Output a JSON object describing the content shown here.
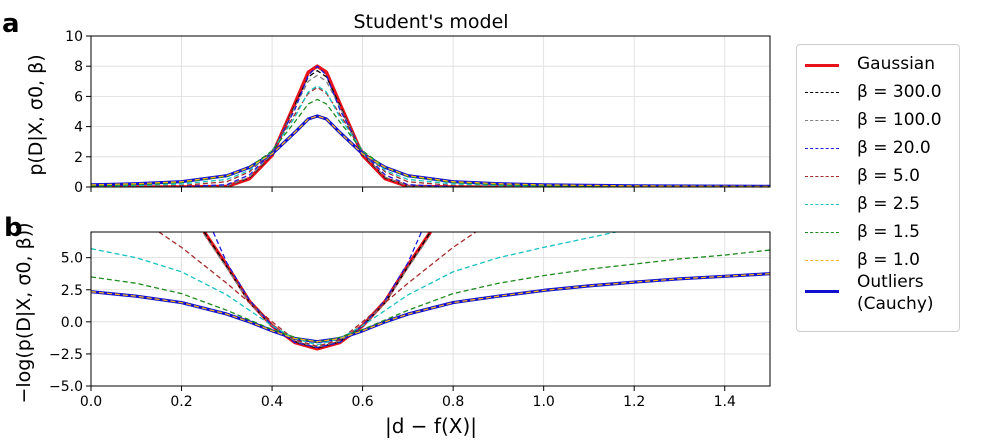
{
  "panel_labels": {
    "a": "a",
    "b": "b"
  },
  "xlabel": "|d − f(X)|",
  "chart_data": [
    {
      "type": "line",
      "title": "Student's model",
      "ylabel": "p(D|X, σ0, β)",
      "xlim": [
        0.0,
        1.5
      ],
      "ylim": [
        0,
        10
      ],
      "xticks": [
        0.0,
        0.2,
        0.4,
        0.6,
        0.8,
        1.0,
        1.2,
        1.4
      ],
      "yticks": [
        0,
        2,
        4,
        6,
        8,
        10
      ],
      "ytick_labels": [
        "0",
        "2",
        "4",
        "6",
        "8",
        "10"
      ],
      "grid": true,
      "x": [
        0.0,
        0.1,
        0.2,
        0.3,
        0.35,
        0.4,
        0.45,
        0.48,
        0.5,
        0.52,
        0.55,
        0.6,
        0.65,
        0.7,
        0.8,
        0.9,
        1.0,
        1.2,
        1.5
      ],
      "series": [
        {
          "name": "Gaussian",
          "values": [
            0.0,
            0.0,
            0.0,
            0.04,
            0.55,
            2.1,
            5.5,
            7.6,
            8.0,
            7.6,
            5.5,
            2.1,
            0.55,
            0.04,
            0.0,
            0.0,
            0.0,
            0.0,
            0.0
          ]
        },
        {
          "name": "β = 300.0",
          "values": [
            0.0,
            0.0,
            0.0,
            0.05,
            0.6,
            2.15,
            5.4,
            7.3,
            7.7,
            7.3,
            5.4,
            2.15,
            0.6,
            0.05,
            0.0,
            0.0,
            0.0,
            0.0,
            0.0
          ]
        },
        {
          "name": "β = 100.0",
          "values": [
            0.0,
            0.0,
            0.0,
            0.06,
            0.65,
            2.2,
            5.3,
            7.0,
            7.4,
            7.0,
            5.3,
            2.2,
            0.65,
            0.06,
            0.0,
            0.0,
            0.0,
            0.0,
            0.0
          ]
        },
        {
          "name": "β = 20.0",
          "values": [
            0.0,
            0.0,
            0.02,
            0.15,
            0.8,
            2.3,
            5.1,
            7.4,
            8.0,
            7.4,
            5.1,
            2.3,
            0.8,
            0.15,
            0.02,
            0.0,
            0.0,
            0.0,
            0.0
          ]
        },
        {
          "name": "β = 5.0",
          "values": [
            0.02,
            0.05,
            0.1,
            0.35,
            1.0,
            2.4,
            4.8,
            6.2,
            6.6,
            6.2,
            4.8,
            2.4,
            1.0,
            0.35,
            0.1,
            0.05,
            0.03,
            0.01,
            0.0
          ]
        },
        {
          "name": "β = 2.5",
          "values": [
            0.05,
            0.1,
            0.2,
            0.5,
            1.1,
            2.4,
            4.6,
            6.3,
            6.7,
            6.3,
            4.6,
            2.4,
            1.1,
            0.5,
            0.2,
            0.1,
            0.05,
            0.02,
            0.01
          ]
        },
        {
          "name": "β = 1.5",
          "values": [
            0.08,
            0.15,
            0.3,
            0.7,
            1.3,
            2.4,
            4.3,
            5.5,
            5.8,
            5.5,
            4.3,
            2.4,
            1.3,
            0.7,
            0.3,
            0.15,
            0.08,
            0.03,
            0.01
          ]
        },
        {
          "name": "β = 1.0",
          "values": [
            0.14,
            0.22,
            0.35,
            0.75,
            1.3,
            2.2,
            3.6,
            4.5,
            4.7,
            4.5,
            3.6,
            2.2,
            1.3,
            0.75,
            0.35,
            0.22,
            0.14,
            0.07,
            0.04
          ]
        },
        {
          "name": "Outliers (Cauchy)",
          "values": [
            0.14,
            0.22,
            0.35,
            0.75,
            1.3,
            2.2,
            3.6,
            4.5,
            4.7,
            4.5,
            3.6,
            2.2,
            1.3,
            0.75,
            0.35,
            0.22,
            0.14,
            0.07,
            0.04
          ]
        }
      ]
    },
    {
      "type": "line",
      "ylabel": "−log(p(D|X, σ0, β))",
      "xlim": [
        0.0,
        1.5
      ],
      "ylim": [
        -5.0,
        7.0
      ],
      "xticks": [
        0.0,
        0.2,
        0.4,
        0.6,
        0.8,
        1.0,
        1.2,
        1.4
      ],
      "xtick_labels": [
        "0.0",
        "0.2",
        "0.4",
        "0.6",
        "0.8",
        "1.0",
        "1.2",
        "1.4"
      ],
      "yticks": [
        -5.0,
        -2.5,
        0.0,
        2.5,
        5.0
      ],
      "ytick_labels": [
        "−5.0",
        "−2.5",
        "0.0",
        "2.5",
        "5.0"
      ],
      "grid": true,
      "series": [
        {
          "name": "Gaussian",
          "x": [
            0.25,
            0.3,
            0.35,
            0.4,
            0.45,
            0.5,
            0.55,
            0.6,
            0.65,
            0.7,
            0.75
          ],
          "values": [
            7.0,
            4.4,
            1.6,
            -0.3,
            -1.6,
            -2.1,
            -1.6,
            -0.3,
            1.6,
            4.4,
            7.0
          ]
        },
        {
          "name": "β = 300.0",
          "x": [
            0.25,
            0.3,
            0.35,
            0.4,
            0.45,
            0.5,
            0.55,
            0.6,
            0.65,
            0.7,
            0.75
          ],
          "values": [
            7.0,
            4.3,
            1.5,
            -0.3,
            -1.55,
            -2.05,
            -1.55,
            -0.3,
            1.5,
            4.3,
            7.0
          ]
        },
        {
          "name": "β = 100.0",
          "x": [
            0.25,
            0.3,
            0.35,
            0.4,
            0.45,
            0.5,
            0.55,
            0.6,
            0.65,
            0.7,
            0.75
          ],
          "values": [
            6.8,
            4.2,
            1.5,
            -0.3,
            -1.5,
            -2.0,
            -1.5,
            -0.3,
            1.5,
            4.2,
            6.8
          ]
        },
        {
          "name": "β = 20.0",
          "x": [
            0.27,
            0.3,
            0.35,
            0.4,
            0.45,
            0.5,
            0.55,
            0.6,
            0.65,
            0.7,
            0.73
          ],
          "values": [
            7.0,
            4.6,
            1.7,
            -0.3,
            -1.6,
            -2.0,
            -1.6,
            -0.3,
            1.7,
            4.6,
            7.0
          ]
        },
        {
          "name": "β = 5.0",
          "x": [
            0.15,
            0.2,
            0.3,
            0.35,
            0.4,
            0.45,
            0.5,
            0.55,
            0.6,
            0.65,
            0.7,
            0.8,
            0.85
          ],
          "values": [
            7.0,
            5.8,
            3.0,
            1.5,
            0.0,
            -1.4,
            -1.9,
            -1.4,
            0.0,
            1.5,
            3.0,
            5.8,
            7.0
          ]
        },
        {
          "name": "β = 2.5",
          "x": [
            0.0,
            0.1,
            0.2,
            0.3,
            0.4,
            0.45,
            0.5,
            0.55,
            0.6,
            0.7,
            0.8,
            0.9,
            1.0,
            1.16
          ],
          "values": [
            5.7,
            5.0,
            3.9,
            2.1,
            -0.3,
            -1.3,
            -1.8,
            -1.3,
            -0.3,
            2.1,
            3.9,
            5.0,
            5.8,
            7.0
          ]
        },
        {
          "name": "β = 1.5",
          "x": [
            0.0,
            0.1,
            0.2,
            0.3,
            0.4,
            0.45,
            0.5,
            0.55,
            0.6,
            0.7,
            0.8,
            0.9,
            1.0,
            1.1,
            1.2,
            1.3,
            1.4,
            1.5
          ],
          "values": [
            3.5,
            3.0,
            2.2,
            0.9,
            -0.6,
            -1.2,
            -1.6,
            -1.2,
            -0.6,
            0.9,
            2.2,
            3.0,
            3.6,
            4.1,
            4.5,
            4.9,
            5.2,
            5.6
          ]
        },
        {
          "name": "β = 1.0",
          "x": [
            0.0,
            0.1,
            0.2,
            0.3,
            0.35,
            0.4,
            0.45,
            0.5,
            0.55,
            0.6,
            0.65,
            0.7,
            0.8,
            0.9,
            1.0,
            1.1,
            1.2,
            1.3,
            1.4,
            1.5
          ],
          "values": [
            2.35,
            2.0,
            1.5,
            0.6,
            0.0,
            -0.7,
            -1.3,
            -1.55,
            -1.3,
            -0.7,
            0.0,
            0.6,
            1.5,
            2.0,
            2.45,
            2.8,
            3.1,
            3.35,
            3.55,
            3.75
          ]
        },
        {
          "name": "Outliers (Cauchy)",
          "x": [
            0.0,
            0.1,
            0.2,
            0.3,
            0.35,
            0.4,
            0.45,
            0.5,
            0.55,
            0.6,
            0.65,
            0.7,
            0.8,
            0.9,
            1.0,
            1.1,
            1.2,
            1.3,
            1.4,
            1.5
          ],
          "values": [
            2.35,
            2.0,
            1.5,
            0.6,
            0.0,
            -0.7,
            -1.3,
            -1.55,
            -1.3,
            -0.7,
            0.0,
            0.6,
            1.5,
            2.0,
            2.45,
            2.8,
            3.1,
            3.35,
            3.55,
            3.75
          ]
        }
      ]
    }
  ],
  "legend": {
    "placement": "right",
    "entries": [
      {
        "label": "Gaussian",
        "color": "#e8121a",
        "style": "solid"
      },
      {
        "label": "β = 300.0",
        "color": "#000000",
        "style": "dashed"
      },
      {
        "label": "β = 100.0",
        "color": "#808080",
        "style": "dashed"
      },
      {
        "label": "β = 20.0",
        "color": "#1a1adf",
        "style": "dashed"
      },
      {
        "label": "β = 5.0",
        "color": "#a52a2a",
        "style": "dashed"
      },
      {
        "label": "β = 2.5",
        "color": "#17c2c2",
        "style": "dashed"
      },
      {
        "label": "β = 1.5",
        "color": "#1e8c1e",
        "style": "dashed"
      },
      {
        "label": "β = 1.0",
        "color": "#f5b21b",
        "style": "dashed"
      },
      {
        "label": "Outliers (Cauchy)",
        "label_lines": [
          "Outliers",
          "(Cauchy)"
        ],
        "color": "#1010d0",
        "style": "solid"
      }
    ]
  }
}
